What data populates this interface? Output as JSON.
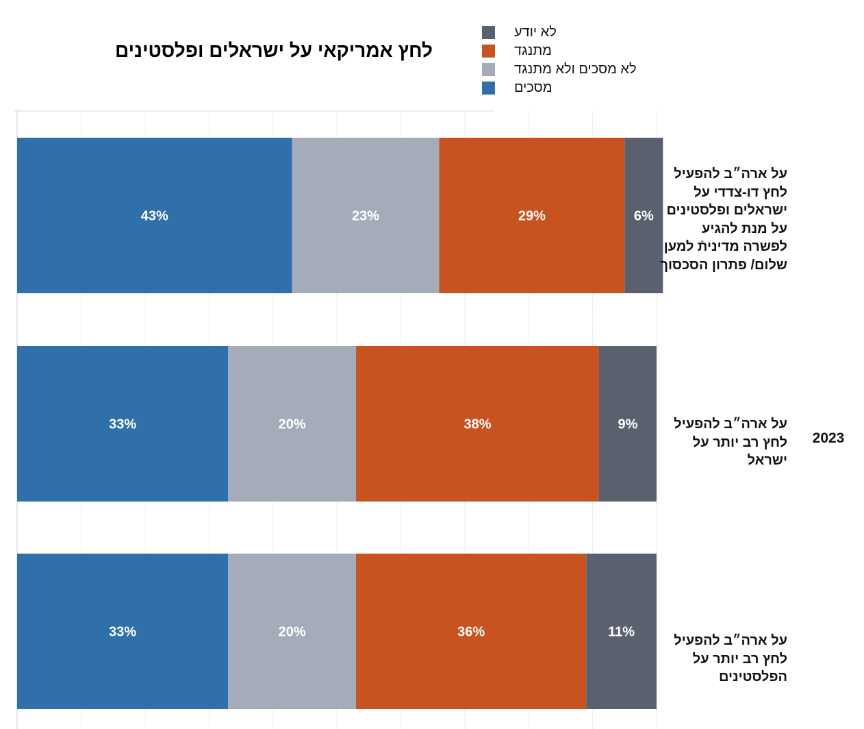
{
  "chart_data": {
    "type": "bar",
    "orientation": "horizontal",
    "stacked": true,
    "title": "לחץ אמריקאי על ישראלים ופלסטינים",
    "group_label": "2023",
    "categories": [
      "על ארה״ב להפעיל לחץ דו-צדדי על ישראלים ופלסטינים על מנת להגיע לפשרה מדיניתֿ למען שלום/ פתרון הסכסוך",
      "על ארה״ב להפעיל לחץ רב יותר על ישראל",
      "על ארה״ב להפעיל לחץ רב יותר על הפלסטינים"
    ],
    "series": [
      {
        "name": "מסכים",
        "color": "#2f6faa",
        "values": [
          43,
          33,
          33
        ]
      },
      {
        "name": "לא מסכים ולא מתנגד",
        "color": "#a3acb8",
        "values": [
          23,
          20,
          20
        ]
      },
      {
        "name": "מתנגד",
        "color": "#c75321",
        "values": [
          29,
          38,
          36
        ]
      },
      {
        "name": "לא יודע",
        "color": "#5a606d",
        "values": [
          6,
          9,
          11
        ]
      }
    ],
    "legend": {
      "placement": "top-right",
      "order": [
        "לא יודע",
        "מתנגד",
        "לא מסכים ולא מתנגד",
        "מסכים"
      ]
    },
    "data_label_suffix": "%",
    "grid": true,
    "xlim": [
      0,
      100
    ]
  }
}
